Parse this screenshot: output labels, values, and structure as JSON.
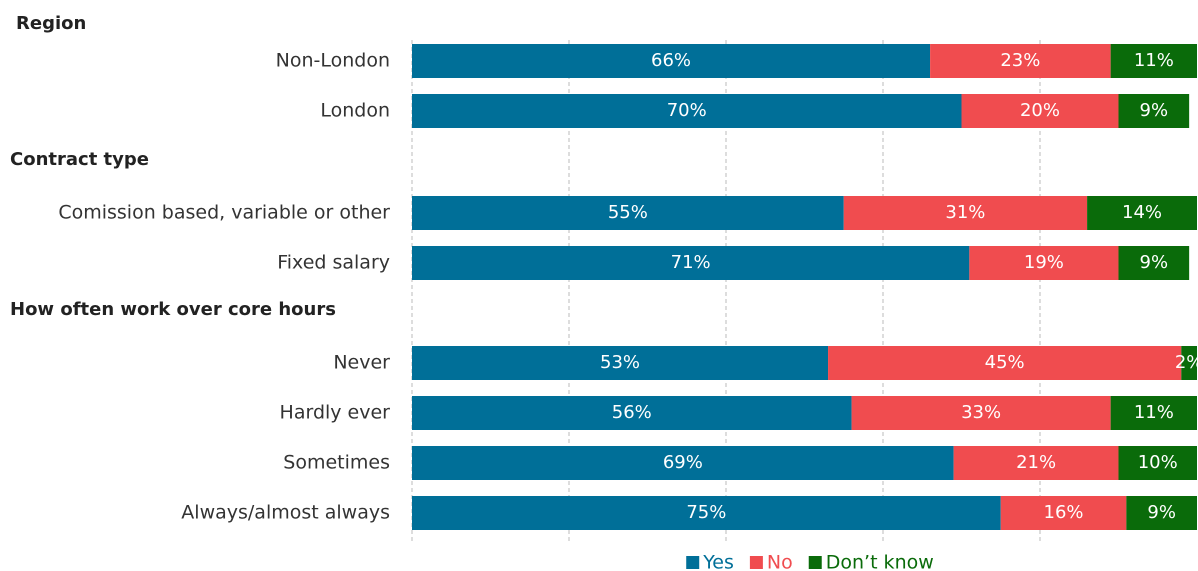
{
  "chart_data": {
    "type": "stacked-bar-horizontal",
    "groups": [
      {
        "name": "Region",
        "categories": [
          "Non-London",
          "London"
        ]
      },
      {
        "name": "Contract type",
        "categories": [
          "Comission based, variable or other",
          "Fixed salary"
        ]
      },
      {
        "name": "How often work over core hours",
        "categories": [
          "Never",
          "Hardly ever",
          "Sometimes",
          "Always/almost always"
        ]
      }
    ],
    "series": [
      {
        "name": "Yes",
        "color": "#006f98",
        "values": [
          66,
          70,
          55,
          71,
          53,
          56,
          69,
          75
        ],
        "value_labels": [
          "66%",
          "70%",
          "55%",
          "71%",
          "53%",
          "56%",
          "69%",
          "75%"
        ]
      },
      {
        "name": "No",
        "color": "#f04c4f",
        "values": [
          23,
          20,
          31,
          19,
          45,
          33,
          21,
          16
        ],
        "value_labels": [
          "23%",
          "20%",
          "31%",
          "19%",
          "45%",
          "33%",
          "21%",
          "16%"
        ]
      },
      {
        "name": "Don’t know",
        "color": "#0a6b0a",
        "values": [
          11,
          9,
          14,
          9,
          2,
          11,
          10,
          9
        ],
        "value_labels": [
          "11%",
          "9%",
          "14%",
          "9%",
          "2%",
          "11%",
          "10%",
          "9%"
        ]
      }
    ],
    "xlim": [
      0,
      100
    ],
    "xticks": [
      0,
      20,
      40,
      60,
      80,
      100
    ],
    "grid": true,
    "legend": "bottom"
  }
}
